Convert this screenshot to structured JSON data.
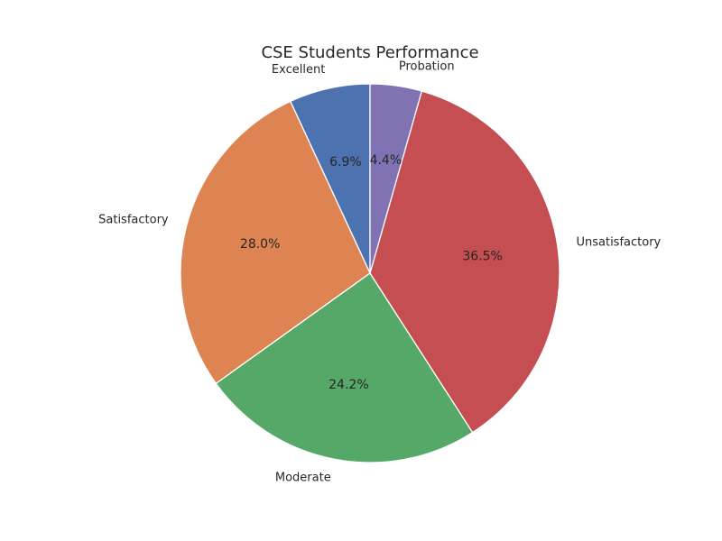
{
  "chart_data": {
    "type": "pie",
    "title": "CSE Students Performance",
    "start_angle_deg": 90,
    "direction": "counterclockwise",
    "slices": [
      {
        "label": "Excellent",
        "percent": 6.9,
        "pct_text": "6.9%",
        "color": "#4c72b0"
      },
      {
        "label": "Satisfactory",
        "percent": 28.0,
        "pct_text": "28.0%",
        "color": "#dd8452"
      },
      {
        "label": "Moderate",
        "percent": 24.2,
        "pct_text": "24.2%",
        "color": "#55a868"
      },
      {
        "label": "Unsatisfactory",
        "percent": 36.5,
        "pct_text": "36.5%",
        "color": "#c44e52"
      },
      {
        "label": "Probation",
        "percent": 4.4,
        "pct_text": "4.4%",
        "color": "#8172b3"
      }
    ]
  }
}
